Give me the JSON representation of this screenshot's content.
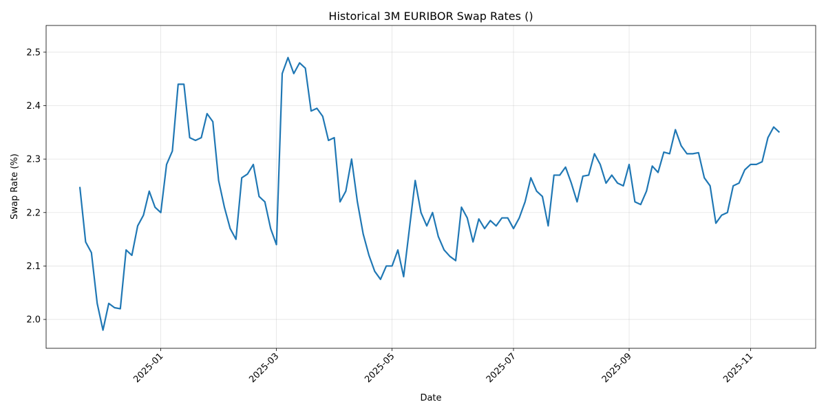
{
  "chart_data": {
    "type": "line",
    "title": "Historical 3M EURIBOR Swap Rates ()",
    "xlabel": "Date",
    "ylabel": "Swap Rate (%)",
    "x": [
      "2024-11",
      "2024-11",
      "2024-11",
      "2024-11",
      "2024-12",
      "2024-12",
      "2024-12",
      "2024-12",
      "2024-12",
      "2024-12",
      "2024-12",
      "2024-12",
      "2024-12",
      "2024-12",
      "2025-01",
      "2025-01",
      "2025-01",
      "2025-01",
      "2025-01",
      "2025-01",
      "2025-01",
      "2025-01",
      "2025-01",
      "2025-01",
      "2025-01",
      "2025-02",
      "2025-02",
      "2025-02",
      "2025-02",
      "2025-02",
      "2025-02",
      "2025-02",
      "2025-02",
      "2025-02",
      "2025-03",
      "2025-03",
      "2025-03",
      "2025-03",
      "2025-03",
      "2025-03",
      "2025-03",
      "2025-03",
      "2025-03",
      "2025-03",
      "2025-04",
      "2025-04",
      "2025-04",
      "2025-04",
      "2025-04",
      "2025-04",
      "2025-04",
      "2025-04",
      "2025-04",
      "2025-04",
      "2025-05",
      "2025-05",
      "2025-05",
      "2025-05",
      "2025-05",
      "2025-05",
      "2025-05",
      "2025-05",
      "2025-05",
      "2025-05",
      "2025-05",
      "2025-06",
      "2025-06",
      "2025-06",
      "2025-06",
      "2025-06",
      "2025-06",
      "2025-06",
      "2025-06",
      "2025-06",
      "2025-06",
      "2025-07",
      "2025-07",
      "2025-07",
      "2025-07",
      "2025-07",
      "2025-07",
      "2025-07",
      "2025-07",
      "2025-07",
      "2025-07",
      "2025-08",
      "2025-08",
      "2025-08",
      "2025-08",
      "2025-08",
      "2025-08",
      "2025-08",
      "2025-08",
      "2025-08",
      "2025-08",
      "2025-09",
      "2025-09",
      "2025-09",
      "2025-09",
      "2025-09",
      "2025-09",
      "2025-09",
      "2025-09",
      "2025-09",
      "2025-09",
      "2025-10",
      "2025-10",
      "2025-10",
      "2025-10",
      "2025-10",
      "2025-10",
      "2025-10",
      "2025-10",
      "2025-10",
      "2025-10",
      "2025-10",
      "2025-11",
      "2025-11",
      "2025-11",
      "2025-11",
      "2025-11",
      "2025-11"
    ],
    "series": [
      {
        "name": "3M EURIBOR Swap Rate",
        "color": "#1f77b4",
        "values": [
          2.248,
          2.145,
          2.125,
          2.03,
          1.98,
          2.03,
          2.022,
          2.02,
          2.13,
          2.12,
          2.175,
          2.195,
          2.24,
          2.21,
          2.2,
          2.29,
          2.315,
          2.44,
          2.44,
          2.34,
          2.335,
          2.34,
          2.385,
          2.37,
          2.26,
          2.21,
          2.17,
          2.15,
          2.265,
          2.272,
          2.29,
          2.23,
          2.22,
          2.17,
          2.14,
          2.46,
          2.49,
          2.46,
          2.48,
          2.47,
          2.39,
          2.395,
          2.38,
          2.335,
          2.34,
          2.22,
          2.24,
          2.3,
          2.22,
          2.16,
          2.12,
          2.09,
          2.075,
          2.1,
          2.1,
          2.13,
          2.08,
          2.17,
          2.26,
          2.2,
          2.175,
          2.2,
          2.155,
          2.13,
          2.118,
          2.11,
          2.21,
          2.19,
          2.145,
          2.188,
          2.17,
          2.185,
          2.175,
          2.19,
          2.19,
          2.17,
          2.19,
          2.22,
          2.265,
          2.24,
          2.23,
          2.175,
          2.27,
          2.27,
          2.285,
          2.255,
          2.22,
          2.268,
          2.27,
          2.31,
          2.29,
          2.255,
          2.27,
          2.255,
          2.25,
          2.29,
          2.22,
          2.215,
          2.24,
          2.287,
          2.275,
          2.313,
          2.31,
          2.355,
          2.325,
          2.31,
          2.31,
          2.312,
          2.265,
          2.25,
          2.18,
          2.195,
          2.2,
          2.25,
          2.255,
          2.28,
          2.29,
          2.29,
          2.295,
          2.34,
          2.36,
          2.35
        ]
      }
    ],
    "xticks": [
      "2025-01",
      "2025-03",
      "2025-05",
      "2025-07",
      "2025-09",
      "2025-11"
    ],
    "ylim": [
      1.946,
      2.55
    ],
    "yticks": [
      {
        "value": 2,
        "label": "2.0"
      },
      2.1,
      2.2,
      2.3,
      2.4,
      2.5
    ],
    "grid": true
  }
}
